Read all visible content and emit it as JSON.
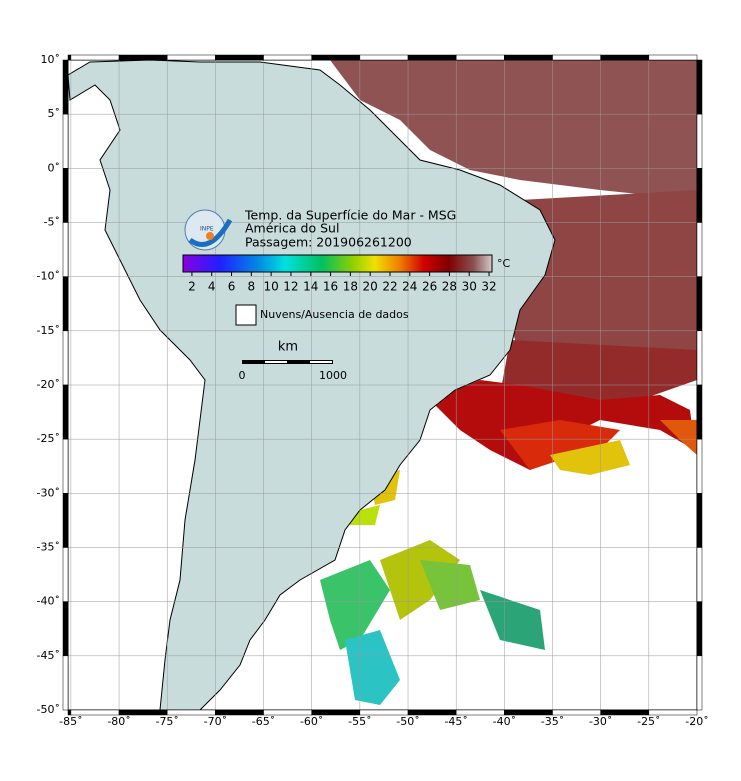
{
  "title": "Temp. da Superfície do Mar - MSG",
  "region": "América do Sul",
  "pass": "Passagem: 201906261200",
  "logo": "INPE",
  "colorbar": {
    "unit": "°C",
    "range": [
      1.1,
      32.3
    ],
    "ticks": [
      2,
      4,
      6,
      8,
      10,
      12,
      14,
      16,
      18,
      20,
      22,
      24,
      26,
      28,
      30,
      32
    ]
  },
  "legend": {
    "clouds": "Nuvens/Ausencia de dados"
  },
  "scale": {
    "unit": "km",
    "labels": [
      0,
      1000
    ]
  },
  "map": {
    "lonlim": [
      -85.3,
      -20
    ],
    "latlim": [
      -50,
      10
    ],
    "lon_ticks": [
      {
        "value": -85,
        "label": "-85˚"
      },
      {
        "value": -80,
        "label": "-80˚"
      },
      {
        "value": -75,
        "label": "-75˚"
      },
      {
        "value": -70,
        "label": "-70˚"
      },
      {
        "value": -65,
        "label": "-65˚"
      },
      {
        "value": -60,
        "label": "-60˚"
      },
      {
        "value": -55,
        "label": "-55˚"
      },
      {
        "value": -50,
        "label": "-50˚"
      },
      {
        "value": -45,
        "label": "-45˚"
      },
      {
        "value": -40,
        "label": "-40˚"
      },
      {
        "value": -35,
        "label": "-35˚"
      },
      {
        "value": -30,
        "label": "-30˚"
      },
      {
        "value": -25,
        "label": "-25˚"
      },
      {
        "value": -20,
        "label": "-20˚"
      }
    ],
    "lat_ticks": [
      {
        "value": 10,
        "label": "10˚"
      },
      {
        "value": 5,
        "label": "5˚"
      },
      {
        "value": 0,
        "label": "0˚"
      },
      {
        "value": -5,
        "label": "-5˚"
      },
      {
        "value": -10,
        "label": "-10˚"
      },
      {
        "value": -15,
        "label": "-15˚"
      },
      {
        "value": -20,
        "label": "-20˚"
      },
      {
        "value": -25,
        "label": "-25˚"
      },
      {
        "value": -30,
        "label": "-30˚"
      },
      {
        "value": -35,
        "label": "-35˚"
      },
      {
        "value": -40,
        "label": "-40˚"
      },
      {
        "value": -45,
        "label": "-45˚"
      },
      {
        "value": -50,
        "label": "-50˚"
      }
    ]
  }
}
